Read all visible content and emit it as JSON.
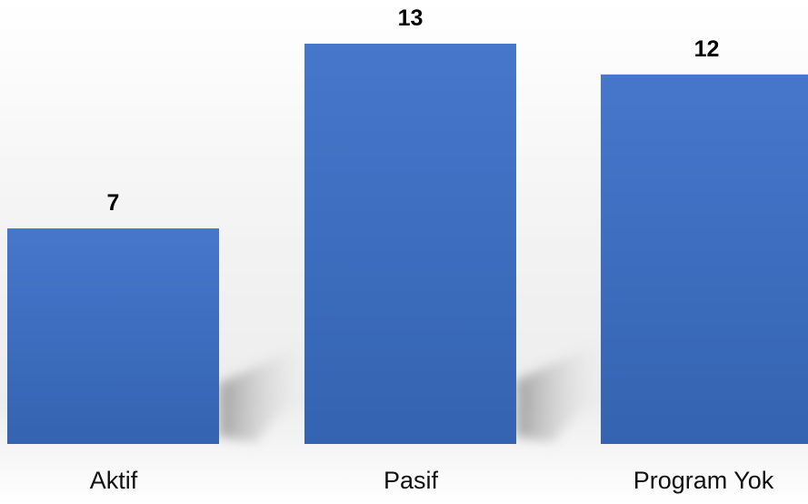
{
  "chart_data": {
    "type": "bar",
    "categories": [
      "Aktif",
      "Pasif",
      "Program Yok"
    ],
    "values": [
      7,
      13,
      12
    ],
    "title": "",
    "xlabel": "",
    "ylabel": "",
    "ylim": [
      0,
      13
    ],
    "grid": false,
    "legend": "none",
    "bar_color": "#4472C4"
  }
}
